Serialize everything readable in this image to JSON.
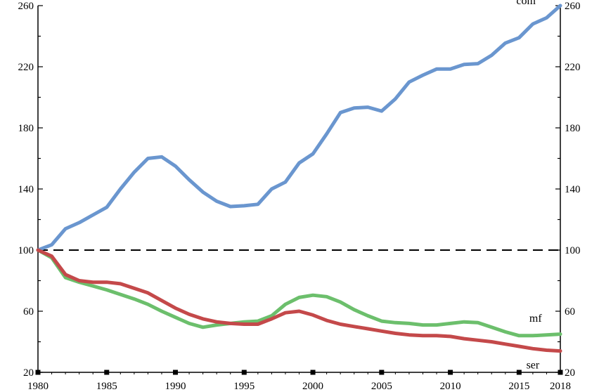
{
  "chart_data": {
    "type": "line",
    "title": "",
    "xlabel": "",
    "ylabel": "",
    "xlim": [
      1980,
      2018
    ],
    "ylim": [
      20,
      260
    ],
    "x_ticks": [
      "1980",
      "1985",
      "1990",
      "1995",
      "2000",
      "2005",
      "2010",
      "2015",
      "2018"
    ],
    "x_tick_values": [
      1980,
      1985,
      1990,
      1995,
      2000,
      2005,
      2010,
      2015,
      2018
    ],
    "y_ticks": [
      "20",
      "60",
      "100",
      "140",
      "180",
      "220",
      "260"
    ],
    "y_tick_values": [
      20,
      60,
      100,
      140,
      180,
      220,
      260
    ],
    "reference_line": 100,
    "grid": false,
    "x": [
      1980,
      1981,
      1982,
      1983,
      1984,
      1985,
      1986,
      1987,
      1988,
      1989,
      1990,
      1991,
      1992,
      1993,
      1994,
      1995,
      1996,
      1997,
      1998,
      1999,
      2000,
      2001,
      2002,
      2003,
      2004,
      2005,
      2006,
      2007,
      2008,
      2009,
      2010,
      2011,
      2012,
      2013,
      2014,
      2015,
      2016,
      2017,
      2018
    ],
    "series": [
      {
        "name": "com",
        "color": "#6a96cf",
        "values": [
          100,
          103.5,
          114,
          118,
          123,
          128,
          140,
          151,
          160,
          161,
          155,
          146,
          138,
          132,
          128.5,
          129,
          130,
          140,
          144.5,
          157,
          163,
          176,
          190,
          193,
          193.5,
          191,
          199,
          210,
          214.5,
          218.5,
          218.5,
          221.5,
          222,
          227.5,
          235.5,
          239,
          248,
          252,
          260
        ]
      },
      {
        "name": "mf",
        "color": "#6cbf6c",
        "values": [
          100,
          95,
          82,
          79,
          76.5,
          74,
          71,
          68,
          64.5,
          60,
          56,
          52,
          49.5,
          51,
          52,
          53,
          53.5,
          57,
          64.5,
          69,
          70.5,
          69.5,
          66,
          61,
          57,
          53.5,
          52.5,
          52,
          51,
          51,
          52,
          53,
          52.5,
          49.5,
          46.5,
          44,
          44,
          44.5,
          45
        ]
      },
      {
        "name": "ser",
        "color": "#c4494a",
        "values": [
          100,
          96,
          84,
          80,
          79,
          79,
          78,
          75,
          72,
          67,
          62,
          58,
          55,
          53,
          52,
          51.5,
          51.5,
          55,
          59,
          60,
          57.5,
          54,
          51.5,
          50,
          48.5,
          47,
          45.5,
          44.5,
          44,
          44,
          43.5,
          42,
          41,
          40,
          38.5,
          37,
          35.5,
          34.5,
          34
        ]
      }
    ]
  }
}
